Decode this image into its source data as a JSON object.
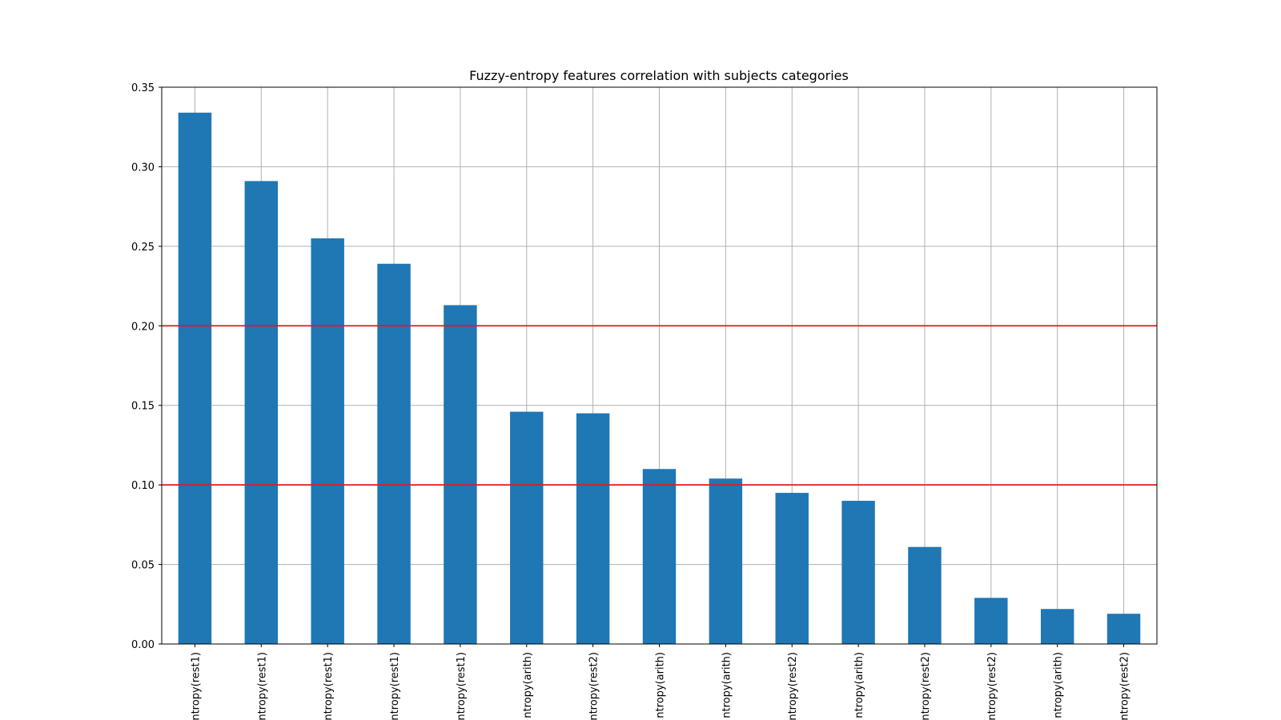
{
  "chart_data": {
    "type": "bar",
    "title": "Fuzzy-entropy features correlation with subjects categories",
    "xlabel": "",
    "ylabel": "",
    "categories": [
      "ntropy(rest1)",
      "ntropy(rest1)",
      "ntropy(rest1)",
      "ntropy(rest1)",
      "ntropy(rest1)",
      "ntropy(arith)",
      "ntropy(rest2)",
      "ntropy(arith)",
      "ntropy(arith)",
      "ntropy(rest2)",
      "ntropy(arith)",
      "ntropy(rest2)",
      "ntropy(rest2)",
      "ntropy(arith)",
      "ntropy(rest2)"
    ],
    "values": [
      0.334,
      0.291,
      0.255,
      0.239,
      0.213,
      0.146,
      0.145,
      0.11,
      0.104,
      0.095,
      0.09,
      0.061,
      0.029,
      0.022,
      0.019
    ],
    "ylim": [
      0,
      0.35
    ],
    "yticks": [
      0.0,
      0.05,
      0.1,
      0.15,
      0.2,
      0.25,
      0.3,
      0.35
    ],
    "ytick_labels": [
      "0.00",
      "0.05",
      "0.10",
      "0.15",
      "0.20",
      "0.25",
      "0.30",
      "0.35"
    ],
    "reference_lines": [
      0.1,
      0.2
    ],
    "grid": true,
    "legend": "none",
    "colors": {
      "bar": "#1f77b4",
      "reference_line": "#e41a1c",
      "grid": "#b0b0b0",
      "axis": "#000000"
    }
  }
}
